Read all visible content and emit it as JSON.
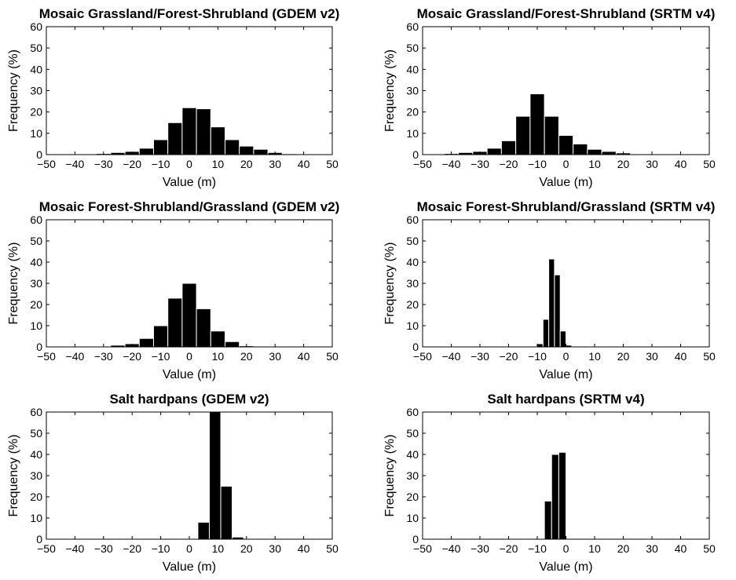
{
  "chart_data": [
    {
      "type": "bar",
      "title": "Mosaic Grassland/Forest-Shrubland (GDEM v2)",
      "xlabel": "Value (m)",
      "ylabel": "Frequency (%)",
      "xlim": [
        -50,
        50
      ],
      "ylim": [
        0,
        60
      ],
      "xticks": [
        -50,
        -40,
        -30,
        -20,
        -10,
        0,
        10,
        20,
        30,
        40,
        50
      ],
      "yticks": [
        0,
        10,
        20,
        30,
        40,
        50,
        60
      ],
      "bin_width": 5,
      "bin_centers": [
        -35,
        -30,
        -25,
        -20,
        -15,
        -10,
        -5,
        0,
        5,
        10,
        15,
        20,
        25,
        30,
        35
      ],
      "values": [
        0.2,
        0.5,
        1.0,
        1.5,
        3.0,
        7.0,
        15.0,
        22.0,
        21.5,
        13.0,
        7.0,
        4.0,
        2.5,
        1.0,
        0.4
      ]
    },
    {
      "type": "bar",
      "title": "Mosaic Grassland/Forest-Shrubland (SRTM v4)",
      "xlabel": "Value (m)",
      "ylabel": "Frequency (%)",
      "xlim": [
        -50,
        50
      ],
      "ylim": [
        0,
        60
      ],
      "xticks": [
        -50,
        -40,
        -30,
        -20,
        -10,
        0,
        10,
        20,
        30,
        40,
        50
      ],
      "yticks": [
        0,
        10,
        20,
        30,
        40,
        50,
        60
      ],
      "bin_width": 5,
      "bin_centers": [
        -45,
        -40,
        -35,
        -30,
        -25,
        -20,
        -15,
        -10,
        -5,
        0,
        5,
        10,
        15,
        20,
        25
      ],
      "values": [
        0.3,
        0.5,
        1.0,
        1.5,
        3.0,
        6.5,
        18.0,
        28.5,
        18.0,
        9.0,
        5.0,
        2.5,
        1.5,
        0.8,
        0.3
      ]
    },
    {
      "type": "bar",
      "title": "Mosaic Forest-Shrubland/Grassland (GDEM v2)",
      "xlabel": "Value (m)",
      "ylabel": "Frequency (%)",
      "xlim": [
        -50,
        50
      ],
      "ylim": [
        0,
        60
      ],
      "xticks": [
        -50,
        -40,
        -30,
        -20,
        -10,
        0,
        10,
        20,
        30,
        40,
        50
      ],
      "yticks": [
        0,
        10,
        20,
        30,
        40,
        50,
        60
      ],
      "bin_width": 5,
      "bin_centers": [
        -30,
        -25,
        -20,
        -15,
        -10,
        -5,
        0,
        5,
        10,
        15,
        20
      ],
      "values": [
        0.3,
        0.8,
        1.5,
        4.0,
        10.0,
        23.0,
        30.0,
        18.0,
        7.5,
        2.5,
        0.5
      ]
    },
    {
      "type": "bar",
      "title": "Mosaic Forest-Shrubland/Grassland (SRTM v4)",
      "xlabel": "Value (m)",
      "ylabel": "Frequency (%)",
      "xlim": [
        -50,
        50
      ],
      "ylim": [
        0,
        60
      ],
      "xticks": [
        -50,
        -40,
        -30,
        -20,
        -10,
        0,
        10,
        20,
        30,
        40,
        50
      ],
      "yticks": [
        0,
        10,
        20,
        30,
        40,
        50,
        60
      ],
      "bin_width": 2,
      "bin_centers": [
        -9,
        -7,
        -5,
        -3,
        -1,
        1
      ],
      "values": [
        1.5,
        13.0,
        41.5,
        34.0,
        7.5,
        0.8
      ]
    },
    {
      "type": "bar",
      "title": "Salt hardpans (GDEM v2)",
      "xlabel": "Value (m)",
      "ylabel": "Frequency (%)",
      "xlim": [
        -50,
        50
      ],
      "ylim": [
        0,
        60
      ],
      "xticks": [
        -50,
        -40,
        -30,
        -20,
        -10,
        0,
        10,
        20,
        30,
        40,
        50
      ],
      "yticks": [
        0,
        10,
        20,
        30,
        40,
        50,
        60
      ],
      "bin_width": 4,
      "bin_centers": [
        5,
        9,
        13,
        17,
        21
      ],
      "values": [
        8.0,
        60.0,
        25.0,
        1.0,
        0.3
      ]
    },
    {
      "type": "bar",
      "title": "Salt hardpans (SRTM v4)",
      "xlabel": "Value (m)",
      "ylabel": "Frequency (%)",
      "xlim": [
        -50,
        50
      ],
      "ylim": [
        0,
        60
      ],
      "xticks": [
        -50,
        -40,
        -30,
        -20,
        -10,
        0,
        10,
        20,
        30,
        40,
        50
      ],
      "yticks": [
        0,
        10,
        20,
        30,
        40,
        50,
        60
      ],
      "bin_width": 2.5,
      "bin_centers": [
        -6.25,
        -3.75,
        -1.25
      ],
      "values": [
        18.0,
        40.0,
        41.0
      ]
    }
  ]
}
